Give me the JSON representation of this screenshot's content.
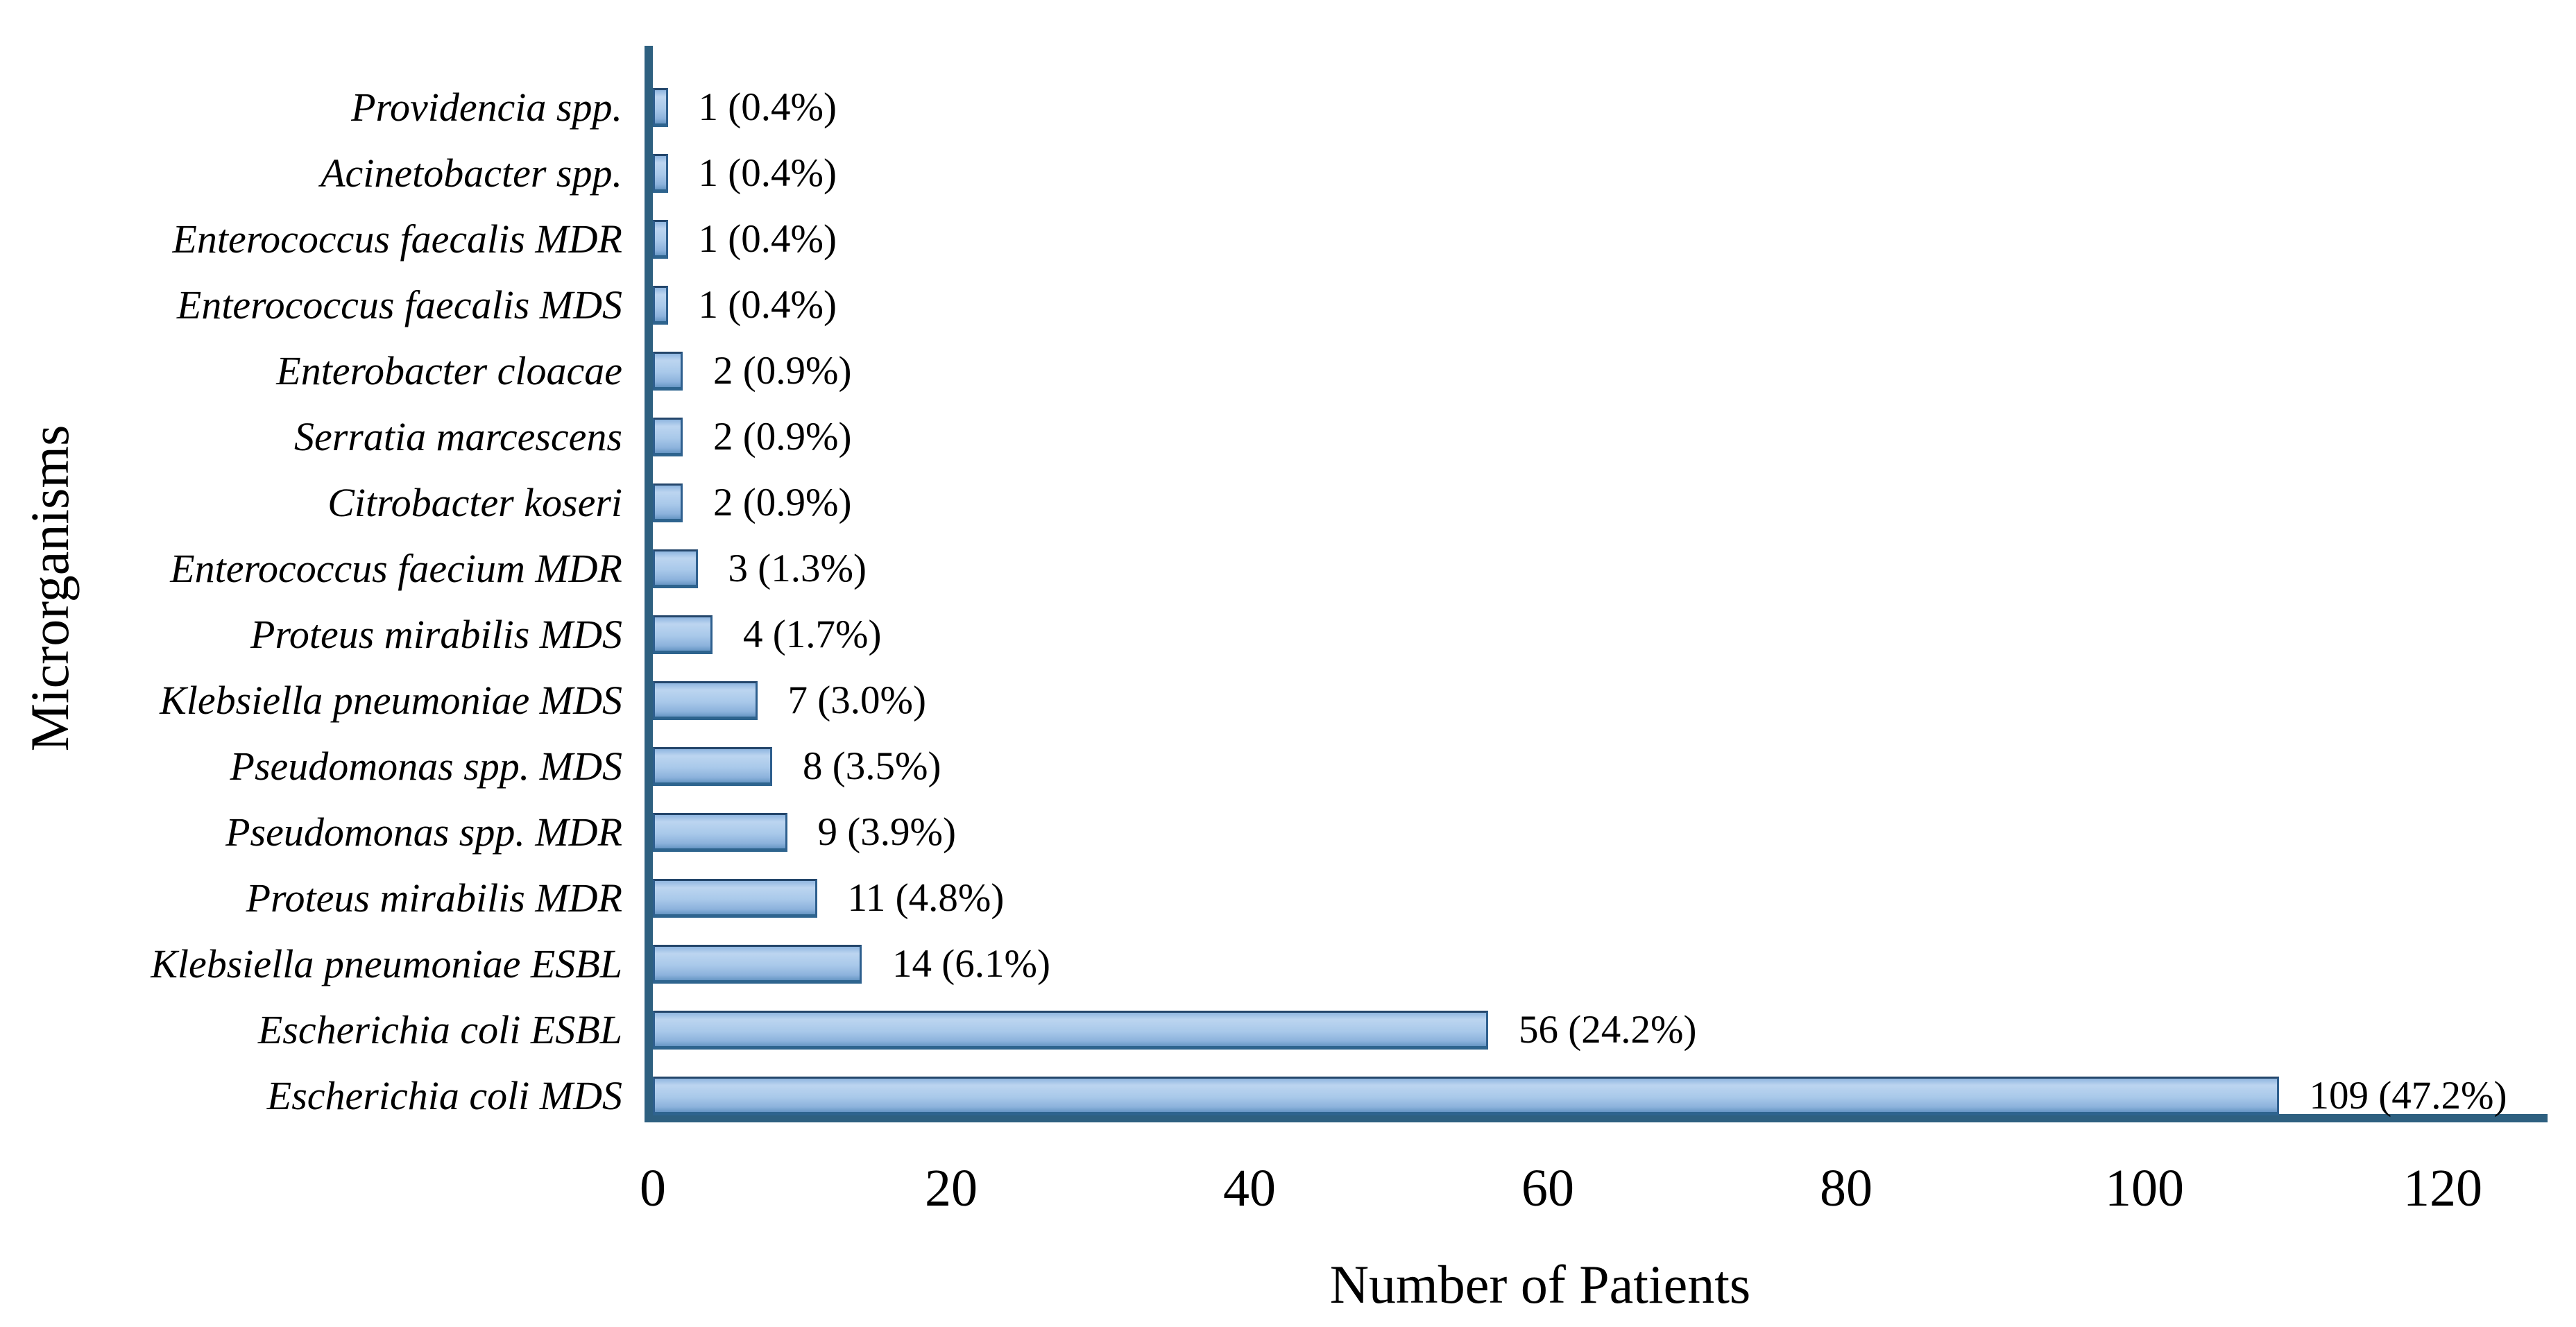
{
  "chart_data": {
    "type": "bar",
    "orientation": "horizontal",
    "title": "",
    "xlabel": "Number of Patients",
    "ylabel": "Microrganisms",
    "categories": [
      "Providencia spp.",
      "Acinetobacter spp.",
      "Enterococcus faecalis MDR",
      "Enterococcus faecalis MDS",
      "Enterobacter cloacae",
      "Serratia marcescens",
      "Citrobacter koseri",
      "Enterococcus faecium MDR",
      "Proteus mirabilis MDS",
      "Klebsiella pneumoniae MDS",
      "Pseudomonas spp. MDS",
      "Pseudomonas spp. MDR",
      "Proteus mirabilis MDR",
      "Klebsiella pneumoniae ESBL",
      "Escherichia coli ESBL",
      "Escherichia coli MDS"
    ],
    "values": [
      1,
      1,
      1,
      1,
      2,
      2,
      2,
      3,
      4,
      7,
      8,
      9,
      11,
      14,
      56,
      109
    ],
    "data_labels": [
      "1 (0.4%)",
      "1 (0.4%)",
      "1 (0.4%)",
      "1 (0.4%)",
      "2 (0.9%)",
      "2 (0.9%)",
      "2 (0.9%)",
      "3 (1.3%)",
      "4 (1.7%)",
      "7 (3.0%)",
      "8 (3.5%)",
      "9 (3.9%)",
      "11 (4.8%)",
      "14 (6.1%)",
      "56 (24.2%)",
      "109 (47.2%)"
    ],
    "x_ticks": [
      0,
      20,
      40,
      60,
      80,
      100,
      120
    ],
    "xlim": [
      0,
      127
    ],
    "grid": false,
    "legend": "none",
    "bar_fill": "#a9c9ea",
    "bar_border": "#2e5f8e",
    "axis_color": "#2e6080",
    "text_color": "#000000",
    "background": "#ffffff"
  }
}
